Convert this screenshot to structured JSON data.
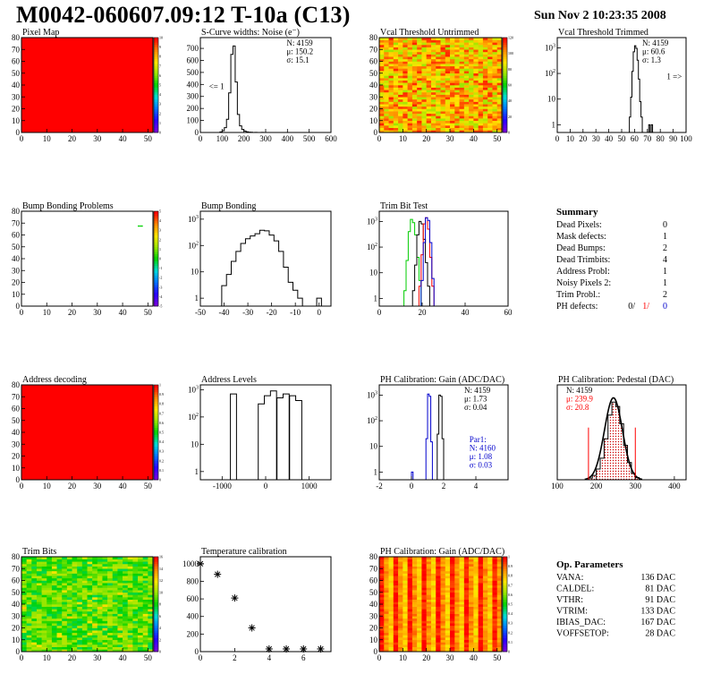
{
  "header": {
    "title": "M0042-060607.09:12 T-10a (C13)",
    "timestamp": "Sun Nov  2 10:23:35 2008"
  },
  "colors": {
    "frame": "#000000",
    "hist_line": "#000000",
    "red": "#ff0000",
    "blue": "#0000cc",
    "green": "#00cc00"
  },
  "chart_data": [
    {
      "id": "pixel-map",
      "type": "heatmap",
      "title": "Pixel Map",
      "xlim": [
        0,
        52
      ],
      "ylim": [
        0,
        80
      ],
      "xticks": [
        0,
        10,
        20,
        30,
        40,
        50
      ],
      "yticks": [
        0,
        10,
        20,
        30,
        40,
        50,
        60,
        70,
        80
      ],
      "zlim": [
        0,
        10
      ],
      "zticks": [
        0,
        1,
        2,
        3,
        4,
        5,
        6,
        7,
        8,
        9,
        10
      ],
      "pattern": "uniform",
      "uniform_value": 10
    },
    {
      "id": "scurve-widths",
      "type": "histogram",
      "title": "S-Curve widths: Noise (e⁻)",
      "xlim": [
        0,
        600
      ],
      "ylim": [
        0,
        790
      ],
      "xticks": [
        0,
        100,
        200,
        300,
        400,
        500,
        600
      ],
      "yticks": [
        0,
        100,
        200,
        300,
        400,
        500,
        600,
        700
      ],
      "stats": [
        {
          "label": "N: 4159",
          "color": "black"
        },
        {
          "label": "μ: 150.2",
          "color": "black"
        },
        {
          "label": "σ: 15.1",
          "color": "black"
        }
      ],
      "annotations": [
        {
          "text": "<= 1",
          "x": 40,
          "y": 360
        }
      ],
      "series": [
        {
          "color": "black",
          "bins": [
            [
              95,
              5
            ],
            [
              105,
              15
            ],
            [
              115,
              40
            ],
            [
              125,
              110
            ],
            [
              135,
              330
            ],
            [
              145,
              650
            ],
            [
              155,
              720
            ],
            [
              165,
              420
            ],
            [
              175,
              150
            ],
            [
              185,
              55
            ],
            [
              195,
              25
            ],
            [
              205,
              12
            ],
            [
              215,
              6
            ],
            [
              225,
              3
            ],
            [
              235,
              2
            ],
            [
              255,
              1
            ],
            [
              285,
              1
            ]
          ]
        }
      ]
    },
    {
      "id": "vcal-untrimmed",
      "type": "heatmap",
      "title": "Vcal Threshold Untrimmed",
      "xlim": [
        0,
        52
      ],
      "ylim": [
        0,
        80
      ],
      "xticks": [
        0,
        10,
        20,
        30,
        40,
        50
      ],
      "yticks": [
        0,
        10,
        20,
        30,
        40,
        50,
        60,
        70,
        80
      ],
      "zlim": [
        0,
        120
      ],
      "zticks": [
        0,
        20,
        40,
        60,
        80,
        100,
        120
      ],
      "pattern": "noise_hot"
    },
    {
      "id": "vcal-trimmed",
      "type": "histogram",
      "title": "Vcal Threshold Trimmed",
      "log_y": true,
      "xlim": [
        0,
        100
      ],
      "ylim": [
        0.5,
        2500
      ],
      "xticks": [
        0,
        10,
        20,
        30,
        40,
        50,
        60,
        70,
        80,
        90,
        100
      ],
      "yticks": [
        1,
        10,
        100,
        1000
      ],
      "stats": [
        {
          "label": "N: 4159",
          "color": "black"
        },
        {
          "label": "μ: 60.6",
          "color": "black"
        },
        {
          "label": "σ:  1.3",
          "color": "black"
        }
      ],
      "annotations": [
        {
          "text": "1 =>",
          "x": 85,
          "y": 60
        }
      ],
      "series": [
        {
          "color": "black",
          "bins": [
            [
              56.5,
              2
            ],
            [
              57.5,
              12
            ],
            [
              58.5,
              120
            ],
            [
              59.5,
              700
            ],
            [
              60.5,
              1200
            ],
            [
              61.5,
              950
            ],
            [
              62.5,
              330
            ],
            [
              63.5,
              60
            ],
            [
              64.5,
              8
            ],
            [
              65.5,
              2
            ],
            [
              71.5,
              1
            ],
            [
              73.5,
              1
            ]
          ]
        }
      ]
    },
    {
      "id": "bump-bonding-problems",
      "type": "heatmap",
      "title": "Bump Bonding Problems",
      "xlim": [
        0,
        52
      ],
      "ylim": [
        0,
        80
      ],
      "xticks": [
        0,
        10,
        20,
        30,
        40,
        50
      ],
      "yticks": [
        0,
        10,
        20,
        30,
        40,
        50,
        60,
        70,
        80
      ],
      "zlim": [
        -5,
        5
      ],
      "zticks": [
        -5,
        -4,
        -3,
        -2,
        -1,
        0,
        1,
        2,
        3,
        4,
        5
      ],
      "pattern": "sparse",
      "points": [
        [
          46,
          67,
          0
        ],
        [
          47,
          67,
          0
        ]
      ]
    },
    {
      "id": "bump-bonding",
      "type": "histogram",
      "title": "Bump Bonding",
      "log_y": true,
      "xlim": [
        -50,
        5
      ],
      "ylim": [
        0.5,
        2000
      ],
      "xticks": [
        -50,
        -40,
        -30,
        -20,
        -10,
        0
      ],
      "yticks": [
        1,
        10,
        100,
        1000
      ],
      "series": [
        {
          "color": "black",
          "bins": [
            [
              -40,
              3
            ],
            [
              -38,
              8
            ],
            [
              -36,
              25
            ],
            [
              -34,
              60
            ],
            [
              -32,
              120
            ],
            [
              -30,
              180
            ],
            [
              -28,
              230
            ],
            [
              -26,
              280
            ],
            [
              -24,
              380
            ],
            [
              -22,
              360
            ],
            [
              -20,
              250
            ],
            [
              -18,
              150
            ],
            [
              -16,
              60
            ],
            [
              -14,
              15
            ],
            [
              -12,
              4
            ],
            [
              -10,
              2
            ],
            [
              -8,
              1
            ],
            [
              0,
              1
            ]
          ]
        }
      ]
    },
    {
      "id": "trim-bit-test",
      "type": "histogram",
      "title": "Trim Bit Test",
      "log_y": true,
      "xlim": [
        0,
        60
      ],
      "ylim": [
        0.5,
        2500
      ],
      "xticks": [
        0,
        20,
        40,
        60
      ],
      "yticks": [
        1,
        10,
        100,
        1000
      ],
      "series": [
        {
          "color": "green",
          "bins": [
            [
              12,
              2
            ],
            [
              13,
              30
            ],
            [
              14,
              400
            ],
            [
              15,
              1200
            ],
            [
              16,
              900
            ],
            [
              17,
              300
            ],
            [
              18,
              40
            ],
            [
              19,
              5
            ]
          ]
        },
        {
          "color": "black",
          "bins": [
            [
              16,
              2
            ],
            [
              17,
              20
            ],
            [
              18,
              300
            ],
            [
              19,
              1000
            ],
            [
              20,
              800
            ],
            [
              21,
              200
            ],
            [
              22,
              25
            ],
            [
              23,
              3
            ]
          ]
        },
        {
          "color": "red",
          "bins": [
            [
              19,
              3
            ],
            [
              20,
              50
            ],
            [
              21,
              800
            ],
            [
              22,
              1400
            ],
            [
              23,
              500
            ],
            [
              24,
              40
            ],
            [
              25,
              3
            ]
          ]
        },
        {
          "color": "blue",
          "bins": [
            [
              20,
              5
            ],
            [
              21,
              150
            ],
            [
              22,
              1400
            ],
            [
              23,
              1100
            ],
            [
              24,
              150
            ],
            [
              25,
              6
            ]
          ]
        }
      ]
    },
    {
      "id": "address-decoding",
      "type": "heatmap",
      "title": "Address decoding",
      "xlim": [
        0,
        52
      ],
      "ylim": [
        0,
        80
      ],
      "xticks": [
        0,
        10,
        20,
        30,
        40,
        50
      ],
      "yticks": [
        0,
        10,
        20,
        30,
        40,
        50,
        60,
        70,
        80
      ],
      "zlim": [
        0,
        1
      ],
      "zticks": [
        0,
        0.1,
        0.2,
        0.3,
        0.4,
        0.5,
        0.6,
        0.7,
        0.8,
        0.9,
        1
      ],
      "pattern": "uniform",
      "uniform_value": 1
    },
    {
      "id": "address-levels",
      "type": "histogram",
      "title": "Address Levels",
      "log_y": true,
      "xlim": [
        -1500,
        1500
      ],
      "ylim": [
        0.5,
        1500
      ],
      "xticks": [
        -1000,
        0,
        1000
      ],
      "yticks": [
        1,
        10,
        100,
        1000
      ],
      "series": [
        {
          "color": "black",
          "bins": [
            [
              -740,
              700
            ],
            [
              -100,
              300
            ],
            [
              40,
              600
            ],
            [
              180,
              900
            ],
            [
              330,
              500
            ],
            [
              470,
              700
            ],
            [
              620,
              600
            ],
            [
              760,
              400
            ]
          ]
        }
      ]
    },
    {
      "id": "ph-gain-1d",
      "type": "histogram",
      "title": "PH Calibration: Gain (ADC/DAC)",
      "log_y": true,
      "xlim": [
        -2,
        6
      ],
      "ylim": [
        0.5,
        2500
      ],
      "xticks": [
        -2,
        0,
        2,
        4
      ],
      "yticks": [
        1,
        10,
        100,
        1000
      ],
      "stats": [
        {
          "label": "N: 4159",
          "color": "black"
        },
        {
          "label": "μ: 1.73",
          "color": "black"
        },
        {
          "label": "σ: 0.04",
          "color": "black"
        }
      ],
      "stats2": [
        {
          "label": "Par1:",
          "color": "blue"
        },
        {
          "label": "N: 4160",
          "color": "blue"
        },
        {
          "label": "μ: 1.08",
          "color": "blue"
        },
        {
          "label": "σ: 0.03",
          "color": "blue"
        }
      ],
      "series": [
        {
          "color": "black",
          "bins": [
            [
              1.65,
              30
            ],
            [
              1.75,
              1000
            ],
            [
              1.85,
              900
            ],
            [
              1.95,
              20
            ]
          ]
        },
        {
          "color": "blue",
          "bins": [
            [
              0.05,
              1
            ],
            [
              0.95,
              20
            ],
            [
              1.05,
              1100
            ],
            [
              1.15,
              900
            ],
            [
              1.25,
              15
            ]
          ]
        }
      ]
    },
    {
      "id": "ph-pedestal",
      "type": "histogram",
      "title": "PH Calibration: Pedestal (DAC)",
      "xlim": [
        100,
        430
      ],
      "ylim": [
        0,
        220
      ],
      "xticks": [
        100,
        200,
        300,
        400
      ],
      "yticks": [],
      "stats": [
        {
          "label": "N: 4159",
          "color": "black"
        },
        {
          "label": "μ: 239.9",
          "color": "red"
        },
        {
          "label": "σ: 20.8",
          "color": "red"
        }
      ],
      "markers": [
        180,
        300
      ],
      "fit": {
        "mean": 244,
        "sigma": 23,
        "amp": 190
      },
      "series": [
        {
          "color": "black",
          "fill": "hatch",
          "bins": [
            [
              185,
              4
            ],
            [
              195,
              10
            ],
            [
              205,
              25
            ],
            [
              215,
              50
            ],
            [
              225,
              95
            ],
            [
              235,
              150
            ],
            [
              245,
              180
            ],
            [
              255,
              170
            ],
            [
              265,
              130
            ],
            [
              275,
              80
            ],
            [
              285,
              40
            ],
            [
              295,
              15
            ],
            [
              305,
              5
            ]
          ]
        }
      ]
    },
    {
      "id": "trim-bits",
      "type": "heatmap",
      "title": "Trim Bits",
      "xlim": [
        0,
        52
      ],
      "ylim": [
        0,
        80
      ],
      "xticks": [
        0,
        10,
        20,
        30,
        40,
        50
      ],
      "yticks": [
        0,
        10,
        20,
        30,
        40,
        50,
        60,
        70,
        80
      ],
      "zlim": [
        0,
        16
      ],
      "zticks": [
        0,
        2,
        4,
        6,
        8,
        10,
        12,
        14,
        16
      ],
      "pattern": "noise_green"
    },
    {
      "id": "temperature-calibration",
      "type": "scatter",
      "title": "Temperature calibration",
      "xlim": [
        0,
        7.6
      ],
      "ylim": [
        0,
        1080
      ],
      "xticks": [
        0,
        2,
        4,
        6
      ],
      "yticks": [
        0,
        200,
        400,
        600,
        800,
        1000
      ],
      "points": [
        [
          0,
          1000
        ],
        [
          1,
          880
        ],
        [
          2,
          610
        ],
        [
          3,
          270
        ],
        [
          4,
          30
        ],
        [
          5,
          30
        ],
        [
          6,
          30
        ],
        [
          7,
          30
        ]
      ]
    },
    {
      "id": "ph-gain-map",
      "type": "heatmap",
      "title": "PH Calibration: Gain (ADC/DAC)",
      "xlim": [
        0,
        52
      ],
      "ylim": [
        0,
        80
      ],
      "xticks": [
        0,
        10,
        20,
        30,
        40,
        50
      ],
      "yticks": [
        0,
        10,
        20,
        30,
        40,
        50,
        60,
        70,
        80
      ],
      "zlim": [
        0,
        1
      ],
      "zticks": [
        0,
        0.1,
        0.2,
        0.3,
        0.4,
        0.5,
        0.6,
        0.7,
        0.8,
        0.9,
        1
      ],
      "pattern": "columns_red"
    }
  ],
  "summary": {
    "title": "Summary",
    "rows": [
      {
        "label": "Dead Pixels:",
        "value": "0"
      },
      {
        "label": "Mask defects:",
        "value": "1"
      },
      {
        "label": "Dead Bumps:",
        "value": "2"
      },
      {
        "label": "Dead Trimbits:",
        "value": "4"
      },
      {
        "label": "Address Probl:",
        "value": "1"
      },
      {
        "label": "Noisy Pixels 2:",
        "value": "1"
      },
      {
        "label": "Trim Probl.:",
        "value": "2"
      }
    ],
    "ph_defects": {
      "label": "PH defects:",
      "values": [
        {
          "text": "0/",
          "color": "black"
        },
        {
          "text": "1/",
          "color": "red"
        },
        {
          "text": "0",
          "color": "blue"
        }
      ]
    }
  },
  "op_params": {
    "title": "Op. Parameters",
    "rows": [
      {
        "label": "VANA:",
        "value": "136 DAC"
      },
      {
        "label": "CALDEL:",
        "value": "81 DAC"
      },
      {
        "label": "VTHR:",
        "value": "91 DAC"
      },
      {
        "label": "VTRIM:",
        "value": "133 DAC"
      },
      {
        "label": "IBIAS_DAC:",
        "value": "167 DAC"
      },
      {
        "label": "VOFFSETOP:",
        "value": "28 DAC"
      }
    ]
  }
}
